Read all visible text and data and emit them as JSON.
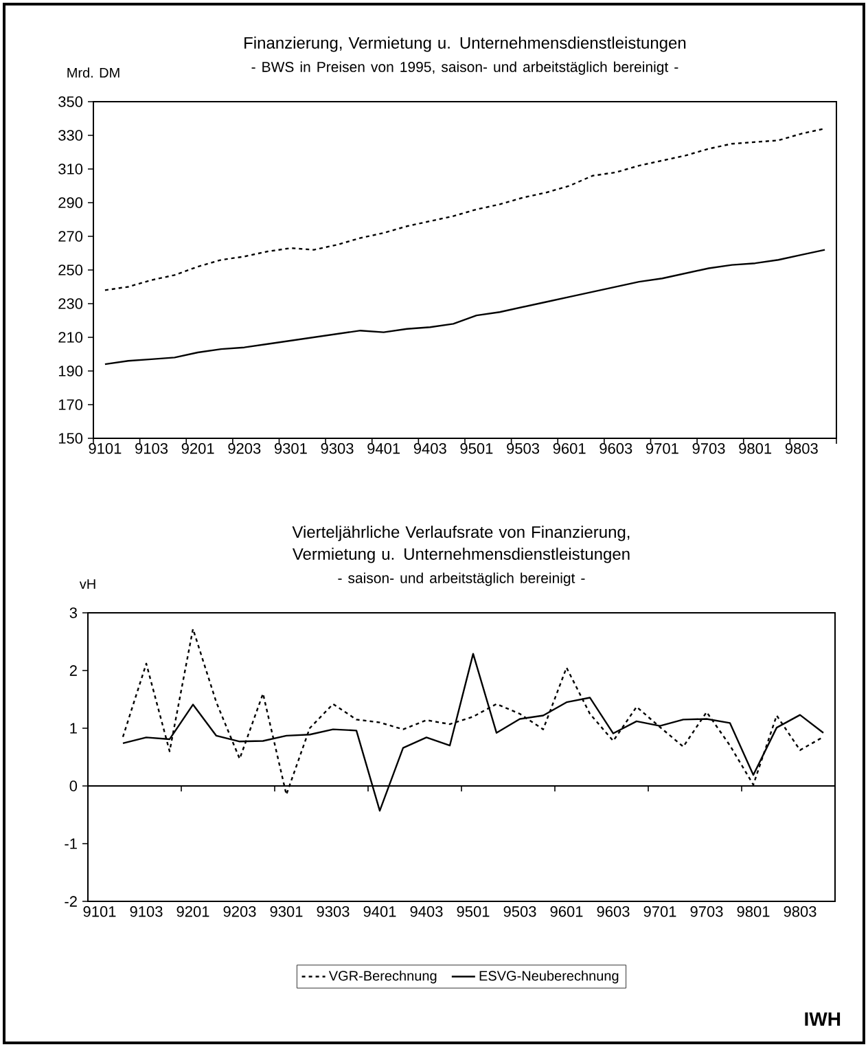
{
  "chart_data": [
    {
      "type": "line",
      "title": "Finanzierung, Vermietung u. Unternehmensdienstleistungen",
      "subtitle": "- BWS in Preisen von 1995, saison- und arbeitstäglich bereinigt -",
      "ylabel": "Mrd. DM",
      "categories": [
        "9101",
        null,
        "9103",
        null,
        "9201",
        null,
        "9203",
        null,
        "9301",
        null,
        "9303",
        null,
        "9401",
        null,
        "9403",
        null,
        "9501",
        null,
        "9503",
        null,
        "9601",
        null,
        "9603",
        null,
        "9701",
        null,
        "9703",
        null,
        "9801",
        null,
        "9803",
        null
      ],
      "series": [
        {
          "color": "#000000",
          "line_style": "dashed",
          "values": [
            238,
            240,
            244,
            247,
            252,
            256,
            258,
            261,
            263,
            262,
            265,
            269,
            272,
            276,
            279,
            282,
            286,
            289,
            293,
            296,
            300,
            306,
            308,
            312,
            315,
            318,
            322,
            325,
            326,
            327,
            331,
            334
          ]
        },
        {
          "color": "#000000",
          "line_style": "solid",
          "values": [
            194,
            196,
            197,
            198,
            201,
            203,
            204,
            206,
            208,
            210,
            212,
            214,
            213,
            215,
            216,
            218,
            223,
            225,
            228,
            231,
            234,
            237,
            240,
            243,
            245,
            248,
            251,
            253,
            254,
            256,
            259,
            262
          ]
        }
      ],
      "ylim": [
        150,
        350
      ],
      "yticks": [
        150,
        170,
        190,
        210,
        230,
        250,
        270,
        290,
        310,
        330,
        350
      ],
      "grid": false,
      "legend": false,
      "marker": "none"
    },
    {
      "type": "line",
      "title": "Vierteljährliche Verlaufsrate von Finanzierung, Vermietung u. Unternehmensdienstleistungen",
      "subtitle": "- saison- und arbeitstäglich bereinigt -",
      "ylabel": "vH",
      "categories": [
        "9101",
        null,
        "9103",
        null,
        "9201",
        null,
        "9203",
        null,
        "9301",
        null,
        "9303",
        null,
        "9401",
        null,
        "9403",
        null,
        "9501",
        null,
        "9503",
        null,
        "9601",
        null,
        "9603",
        null,
        "9701",
        null,
        "9703",
        null,
        "9801",
        null,
        "9803",
        null
      ],
      "series": [
        {
          "name": "VGR-Berechnung",
          "color": "#000000",
          "line_style": "dashed",
          "values": [
            null,
            0.85,
            2.12,
            0.6,
            2.72,
            1.45,
            0.47,
            1.6,
            -0.15,
            1.0,
            1.42,
            1.15,
            1.1,
            0.98,
            1.14,
            1.07,
            1.2,
            1.42,
            1.25,
            0.98,
            2.05,
            1.25,
            0.78,
            1.37,
            1.02,
            0.68,
            1.28,
            0.7,
            0.02,
            1.22,
            0.62,
            0.85
          ]
        },
        {
          "name": "ESVG-Neuberechnung",
          "color": "#000000",
          "line_style": "solid",
          "values": [
            null,
            0.74,
            0.84,
            0.81,
            1.41,
            0.87,
            0.77,
            0.78,
            0.87,
            0.89,
            0.98,
            0.96,
            -0.43,
            0.66,
            0.84,
            0.7,
            2.29,
            0.92,
            1.16,
            1.22,
            1.45,
            1.53,
            0.91,
            1.12,
            1.04,
            1.15,
            1.16,
            1.09,
            0.19,
            1.01,
            1.23,
            0.92
          ]
        }
      ],
      "ylim": [
        -2,
        3
      ],
      "yticks": [
        -2,
        -1,
        0,
        1,
        2,
        3
      ],
      "ref_lines": [
        {
          "axis": "y",
          "value": 0
        }
      ],
      "grid": false,
      "legend": "bottom",
      "marker": "none",
      "annotations": [
        "IWH"
      ]
    }
  ]
}
